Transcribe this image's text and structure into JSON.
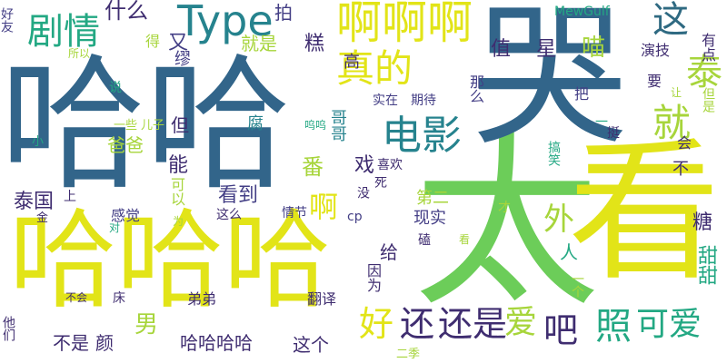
{
  "words": {
    "hahaha_big": "哈哈",
    "hahaha_bottom": "哈哈哈",
    "tai": "太",
    "kan": "看",
    "ku": "哭",
    "type": "Type",
    "juqing": "剧情",
    "aaa": "啊啊啊",
    "zhede": "真的",
    "dianying": "电影",
    "zhe": "这",
    "tai2": "泰",
    "jiu": "就",
    "shenme": "什么",
    "you": "又",
    "pai": "拍",
    "gao": "高",
    "xing": "星",
    "miao": "喵",
    "zhi": "值",
    "jiushi": "就是",
    "haoyou": "好友",
    "suoyi": "所以",
    "miu": "缪",
    "de": "得",
    "gaoji": "糕",
    "shuo": "说",
    "yixie": "一些",
    "erzi": "儿子",
    "dan": "但",
    "fu": "腐",
    "gege": "哥哥",
    "xiao": "小",
    "baba": "爸爸",
    "neng": "能",
    "fan": "番",
    "xi": "戏",
    "xihuan": "喜欢",
    "taiguo": "泰国",
    "shang": "上",
    "kandao": "看到",
    "ganjue": "感觉",
    "keyi": "可以",
    "zheme": "这么",
    "qingjie": "情节",
    "cp": "cp",
    "dier": "第二",
    "mei": "没",
    "si": "死",
    "a": "啊",
    "wai": "外",
    "xianshi": "现实",
    "cai": "才",
    "ren": "人",
    "gei": "给",
    "ke": "磕",
    "yinwei": "因为",
    "nan": "男",
    "hao": "好",
    "haishi": "还是",
    "hai": "还",
    "ai": "爱",
    "tang": "糖",
    "tiantian": "甜甜",
    "yige": "一个",
    "bushi": "不是",
    "yan": "颜",
    "hahahaha": "哈哈哈哈",
    "zhege": "这个",
    "fanyi": "翻译",
    "didi": "弟弟",
    "chuang": "床",
    "buhui": "不会",
    "tamen": "他们",
    "erji": "二季",
    "kan2": "看",
    "keai": "可爱",
    "ba": "吧",
    "zhaopian": "照",
    "mewgulf": "MewGulf",
    "yanji": "演技",
    "youdian": "有点",
    "yao": "要",
    "rang": "让",
    "ba2": "把",
    "shizai": "实在",
    "qidai": "期待",
    "name": "那么",
    "wuwu": "呜呜",
    "yi": "一",
    "ting": "挺",
    "hui": "会",
    "bu": "不",
    "xiaoxiao": "搞笑",
    "danshi": "但是",
    "dui": "对",
    "wei": "为",
    "jin": "金"
  }
}
